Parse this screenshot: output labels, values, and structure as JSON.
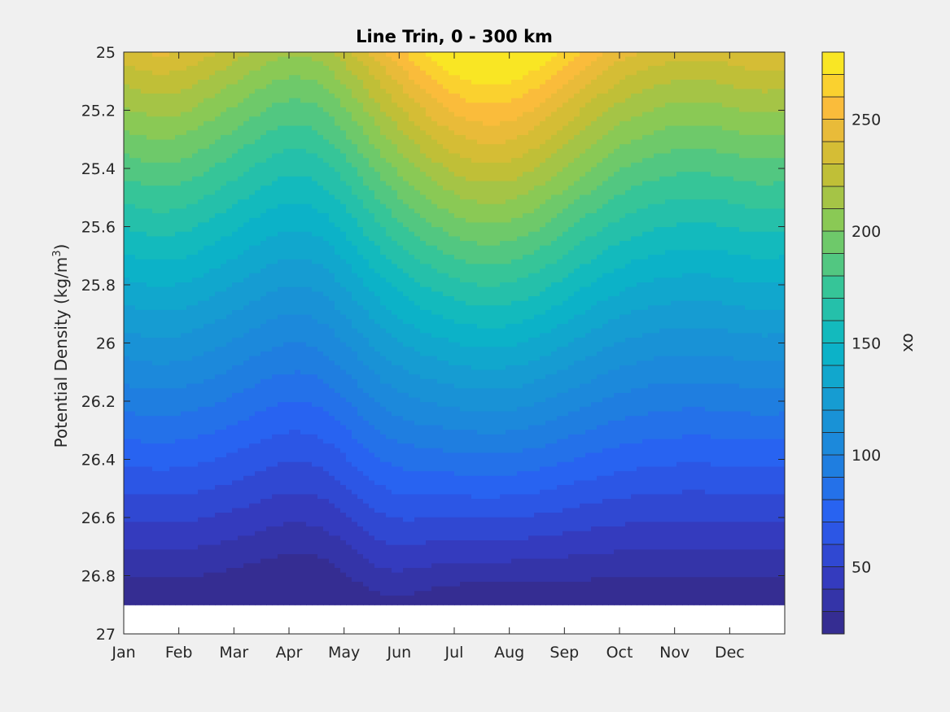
{
  "chart_data": {
    "type": "heatmap",
    "subtype": "filled-contour",
    "title": "Line Trin, 0 - 300 km",
    "xlabel": "",
    "ylabel": "Potential Density (kg/m³)",
    "ylabel_main": "Potential Density (kg/m",
    "ylabel_sup": "3",
    "ylabel_end": ")",
    "colorbar_label": "ox",
    "x_ticks": [
      "Jan",
      "Feb",
      "Mar",
      "Apr",
      "May",
      "Jun",
      "Jul",
      "Aug",
      "Sep",
      "Oct",
      "Nov",
      "Dec"
    ],
    "y_ticks": [
      "25",
      "25.2",
      "25.4",
      "25.6",
      "25.8",
      "26",
      "26.2",
      "26.4",
      "26.6",
      "26.8",
      "27"
    ],
    "ylim": [
      25,
      27
    ],
    "y_reversed": true,
    "colorbar_ticks": [
      "50",
      "100",
      "150",
      "200",
      "250"
    ],
    "colorbar_range": [
      20,
      280
    ],
    "contour_step": 10,
    "colormap": "parula",
    "data_limit_density": 26.9,
    "grid": false
  }
}
